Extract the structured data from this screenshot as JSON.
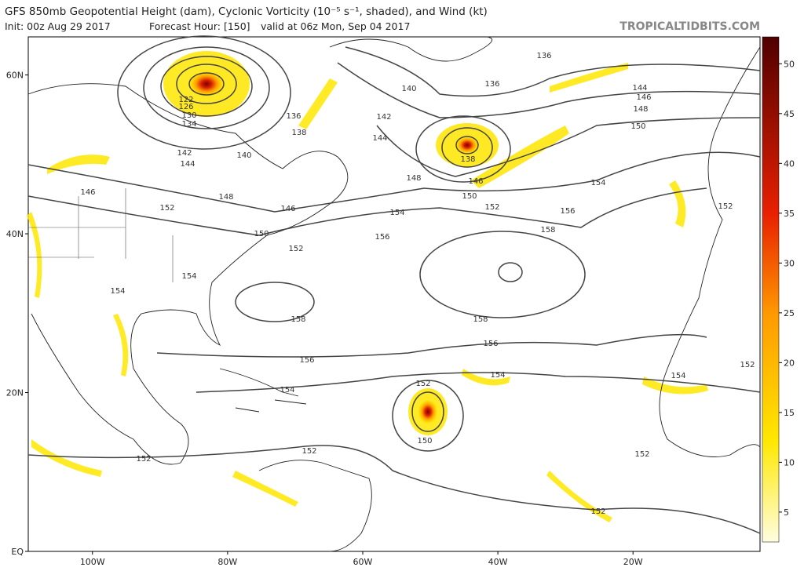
{
  "header": {
    "title": "GFS 850mb Geopotential Height (dam), Cyclonic Vorticity (10⁻⁵ s⁻¹, shaded), and Wind (kt)",
    "init": "Init: 00z Aug 29 2017",
    "forecast_hour": "Forecast Hour: [150]",
    "valid": "valid at 06z Mon, Sep 04 2017",
    "site": "TROPICALTIDBITS.COM"
  },
  "map": {
    "lat_range": [
      0,
      64.8
    ],
    "lon_range": [
      -109.5,
      -1.2
    ],
    "lat_ticks": [
      {
        "value": 60,
        "label": "60N"
      },
      {
        "value": 40,
        "label": "40N"
      },
      {
        "value": 20,
        "label": "20N"
      },
      {
        "value": 0,
        "label": "EQ"
      }
    ],
    "lon_ticks": [
      {
        "value": -100,
        "label": "100W"
      },
      {
        "value": -80,
        "label": "80W"
      },
      {
        "value": -60,
        "label": "60W"
      },
      {
        "value": -40,
        "label": "40W"
      },
      {
        "value": -20,
        "label": "20W"
      }
    ],
    "contour_labels": [
      "136",
      "136",
      "140",
      "144",
      "146",
      "148",
      "150",
      "142",
      "144",
      "138",
      "146",
      "148",
      "150",
      "152",
      "154",
      "156",
      "158",
      "154",
      "156",
      "122",
      "126",
      "130",
      "134",
      "136",
      "138",
      "140",
      "142",
      "144",
      "146",
      "148",
      "152",
      "146",
      "150",
      "152",
      "154",
      "154",
      "158",
      "158",
      "156",
      "156",
      "154",
      "152",
      "154",
      "150",
      "152",
      "152",
      "152",
      "152",
      "152",
      "154",
      "152"
    ]
  },
  "colorbar": {
    "range": [
      2,
      52.7
    ],
    "ticks": [
      5,
      10,
      15,
      20,
      25,
      30,
      35,
      40,
      45,
      50
    ]
  }
}
